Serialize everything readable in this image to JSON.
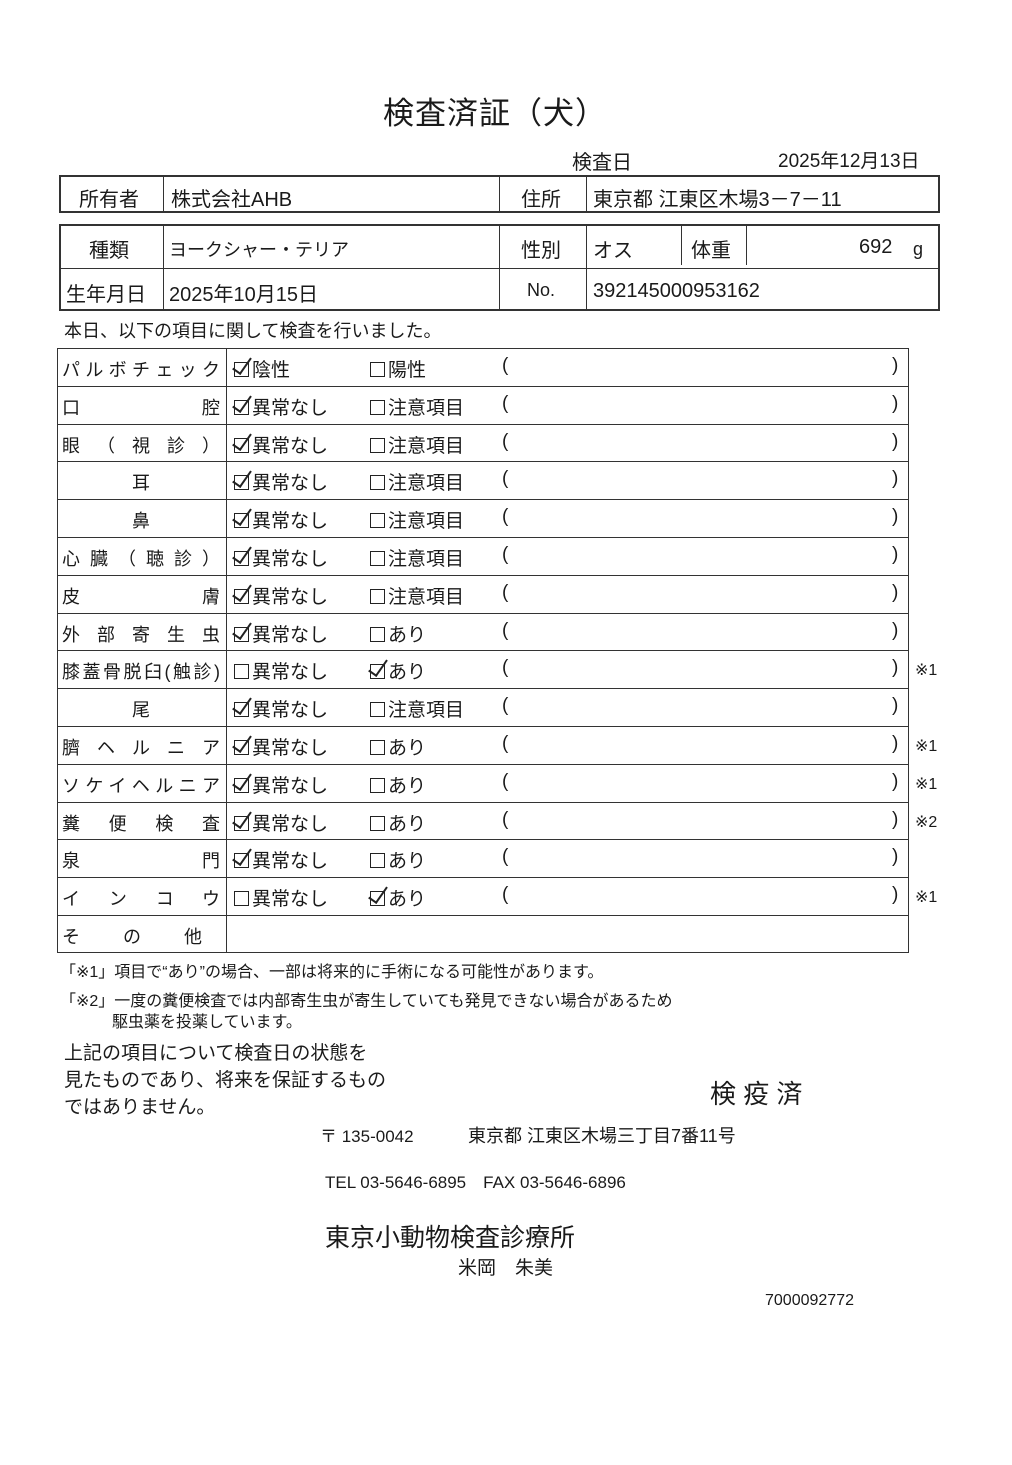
{
  "title": "検査済証（犬）",
  "exam_date_label": "検査日",
  "exam_date": "2025年12月13日",
  "owner": {
    "label": "所有者",
    "value": "株式会社AHB",
    "address_label": "住所",
    "address": "東京都 江東区木場3－7－11"
  },
  "pet": {
    "breed_label": "種類",
    "breed": "ヨークシャー・テリア",
    "sex_label": "性別",
    "sex": "オス",
    "weight_label": "体重",
    "weight": "692",
    "weight_unit": "g",
    "birth_label": "生年月日",
    "birth": "2025年10月15日",
    "no_label": "No.",
    "no": "392145000953162"
  },
  "intro": "本日、以下の項目に関して検査を行いました。",
  "checklist": [
    {
      "label": "パルボチェック",
      "opt1": "陰性",
      "opt2": "陽性",
      "checked": 1,
      "note": ""
    },
    {
      "label": "口腔",
      "opt1": "異常なし",
      "opt2": "注意項目",
      "checked": 1,
      "note": ""
    },
    {
      "label": "眼（視診）",
      "opt1": "異常なし",
      "opt2": "注意項目",
      "checked": 1,
      "note": ""
    },
    {
      "label": "耳",
      "opt1": "異常なし",
      "opt2": "注意項目",
      "checked": 1,
      "note": ""
    },
    {
      "label": "鼻",
      "opt1": "異常なし",
      "opt2": "注意項目",
      "checked": 1,
      "note": ""
    },
    {
      "label": "心臓（聴診）",
      "opt1": "異常なし",
      "opt2": "注意項目",
      "checked": 1,
      "note": ""
    },
    {
      "label": "皮膚",
      "opt1": "異常なし",
      "opt2": "注意項目",
      "checked": 1,
      "note": ""
    },
    {
      "label": "外部寄生虫",
      "opt1": "異常なし",
      "opt2": "あり",
      "checked": 1,
      "note": ""
    },
    {
      "label": "膝蓋骨脱臼(触診)",
      "opt1": "異常なし",
      "opt2": "あり",
      "checked": 2,
      "note": "※1"
    },
    {
      "label": "尾",
      "opt1": "異常なし",
      "opt2": "注意項目",
      "checked": 1,
      "note": ""
    },
    {
      "label": "臍ヘルニア",
      "opt1": "異常なし",
      "opt2": "あり",
      "checked": 1,
      "note": "※1"
    },
    {
      "label": "ソケイヘルニア",
      "opt1": "異常なし",
      "opt2": "あり",
      "checked": 1,
      "note": "※1"
    },
    {
      "label": "糞便検査",
      "opt1": "異常なし",
      "opt2": "あり",
      "checked": 1,
      "note": "※2"
    },
    {
      "label": "泉門",
      "opt1": "異常なし",
      "opt2": "あり",
      "checked": 1,
      "note": ""
    },
    {
      "label": "インコウ",
      "opt1": "異常なし",
      "opt2": "あり",
      "checked": 2,
      "note": "※1"
    }
  ],
  "other_label": "その他",
  "paren_open": "(",
  "paren_close": ")",
  "footnote1": "「※1」項目で“あり”の場合、一部は将来的に手術になる可能性があります。",
  "footnote2_line1": "「※2」一度の糞便検査では内部寄生虫が寄生していても発見できない場合があるため",
  "footnote2_line2": "駆虫薬を投薬しています。",
  "disclaimer": [
    "上記の項目について検査日の状態を",
    "見たものであり、将来を保証するもの",
    "ではありません。"
  ],
  "stamp": "検 疫 済",
  "clinic": {
    "postal": "〒 135-0042",
    "address": "東京都 江東区木場三丁目7番11号",
    "tel_fax": "TEL 03-5646-6895　FAX 03-5646-6896",
    "name": "東京小動物検査診療所",
    "person": "米岡　朱美"
  },
  "serial": "7000092772"
}
